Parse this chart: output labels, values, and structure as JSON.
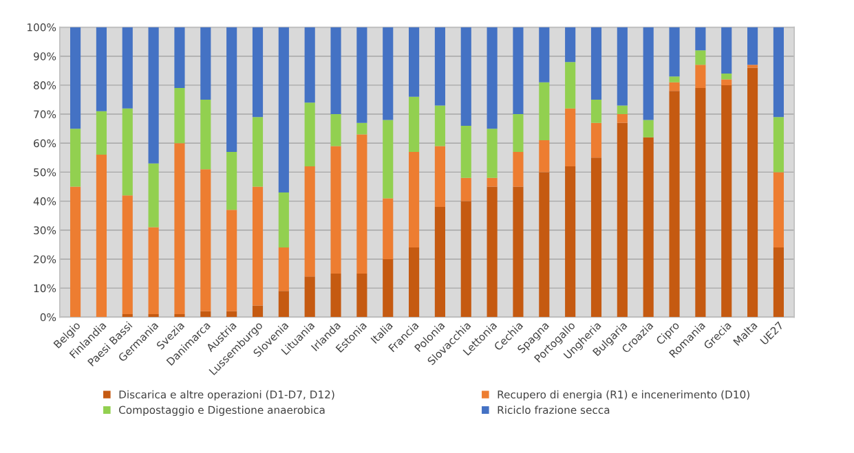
{
  "chart_data": {
    "type": "bar",
    "stacked": true,
    "categories": [
      "Belgio",
      "Finlandia",
      "Paesi Bassi",
      "Germania",
      "Svezia",
      "Danimarca",
      "Austria",
      "Lussemburgo",
      "Slovenia",
      "Lituania",
      "Irlanda",
      "Estonia",
      "Italia",
      "Francia",
      "Polonia",
      "Slovacchia",
      "Lettonia",
      "Cechia",
      "Spagna",
      "Portogallo",
      "Ungheria",
      "Bulgaria",
      "Croazia",
      "Cipro",
      "Romania",
      "Grecia",
      "Malta",
      "UE27"
    ],
    "series": [
      {
        "name": "Discarica e altre operazioni (D1-D7, D12)",
        "color": "#c55a11",
        "values": [
          0,
          0,
          1,
          1,
          1,
          2,
          2,
          4,
          9,
          14,
          15,
          15,
          20,
          24,
          38,
          40,
          45,
          45,
          50,
          52,
          55,
          67,
          62,
          78,
          79,
          80,
          86,
          24
        ]
      },
      {
        "name": "Recupero di energia (R1) e incenerimento (D10)",
        "color": "#ed7d31",
        "values": [
          45,
          56,
          41,
          30,
          59,
          49,
          35,
          41,
          15,
          38,
          44,
          48,
          21,
          33,
          21,
          8,
          3,
          12,
          11,
          20,
          12,
          3,
          0,
          3,
          8,
          2,
          1,
          26
        ]
      },
      {
        "name": "Compostaggio e Digestione anaerobica",
        "color": "#92d050",
        "values": [
          20,
          15,
          30,
          22,
          19,
          24,
          20,
          24,
          19,
          22,
          11,
          4,
          27,
          19,
          14,
          18,
          17,
          13,
          20,
          16,
          8,
          3,
          6,
          2,
          5,
          2,
          0,
          19
        ]
      },
      {
        "name": "Riciclo frazione secca",
        "color": "#4472c4",
        "values": [
          35,
          29,
          28,
          47,
          21,
          25,
          43,
          31,
          57,
          26,
          30,
          33,
          32,
          24,
          27,
          34,
          35,
          30,
          19,
          12,
          25,
          27,
          32,
          17,
          8,
          16,
          13,
          31
        ]
      }
    ],
    "ylim": [
      0,
      100
    ],
    "yticks": [
      {
        "value": 0,
        "label": "0%"
      },
      {
        "value": 10,
        "label": "10%"
      },
      {
        "value": 20,
        "label": "20%"
      },
      {
        "value": 30,
        "label": "30%"
      },
      {
        "value": 40,
        "label": "40%"
      },
      {
        "value": 50,
        "label": "50%"
      },
      {
        "value": 60,
        "label": "60%"
      },
      {
        "value": 70,
        "label": "70%"
      },
      {
        "value": 80,
        "label": "80%"
      },
      {
        "value": 90,
        "label": "90%"
      },
      {
        "value": 100,
        "label": "100%"
      }
    ],
    "grid": "y",
    "legend": "bottom"
  }
}
